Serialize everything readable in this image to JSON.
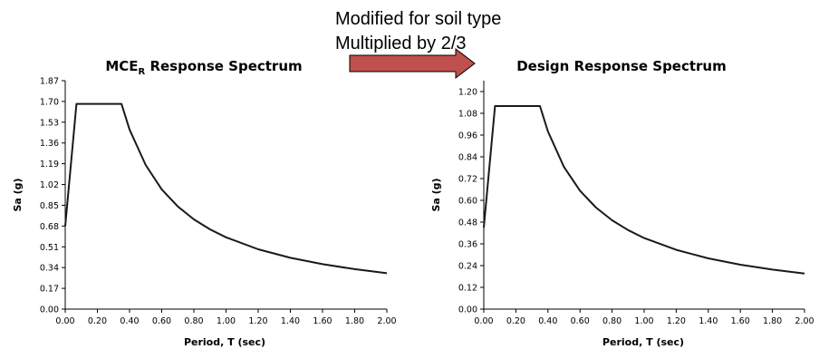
{
  "annotation": {
    "lines": [
      "Modified for soil type",
      "Multiplied by 2/3"
    ],
    "arrow_color": "#c0504d"
  },
  "chart_data": [
    {
      "type": "line",
      "title_main": "MCE",
      "title_sub": "R",
      "title_rest": " Response Spectrum",
      "xlabel": "Period, T (sec)",
      "ylabel": "Sa (g)",
      "xlim": [
        0,
        2.0
      ],
      "ylim": [
        0,
        1.87
      ],
      "xticks": [
        "0.00",
        "0.20",
        "0.40",
        "0.60",
        "0.80",
        "1.00",
        "1.20",
        "1.40",
        "1.60",
        "1.80",
        "2.00"
      ],
      "yticks": [
        "0.00",
        "0.17",
        "0.34",
        "0.51",
        "0.68",
        "0.85",
        "1.02",
        "1.19",
        "1.36",
        "1.53",
        "1.70",
        "1.87"
      ],
      "series": [
        {
          "x": [
            0.0,
            0.07,
            0.35,
            0.4,
            0.5,
            0.6,
            0.7,
            0.8,
            0.9,
            1.0,
            1.2,
            1.4,
            1.6,
            1.8,
            2.0
          ],
          "y": [
            0.68,
            1.68,
            1.68,
            1.47,
            1.18,
            0.98,
            0.84,
            0.735,
            0.653,
            0.588,
            0.49,
            0.42,
            0.368,
            0.327,
            0.294
          ]
        }
      ]
    },
    {
      "type": "line",
      "title_main": "Design Response Spectrum",
      "title_sub": "",
      "title_rest": "",
      "xlabel": "Period, T (sec)",
      "ylabel": "Sa (g)",
      "xlim": [
        0,
        2.0
      ],
      "ylim": [
        0,
        1.26
      ],
      "xticks": [
        "0.00",
        "0.20",
        "0.40",
        "0.60",
        "0.80",
        "1.00",
        "1.20",
        "1.40",
        "1.60",
        "1.80",
        "2.00"
      ],
      "yticks": [
        "0.00",
        "0.12",
        "0.24",
        "0.36",
        "0.48",
        "0.60",
        "0.72",
        "0.84",
        "0.96",
        "1.08",
        "1.20"
      ],
      "series": [
        {
          "x": [
            0.0,
            0.07,
            0.35,
            0.4,
            0.5,
            0.6,
            0.7,
            0.8,
            0.9,
            1.0,
            1.2,
            1.4,
            1.6,
            1.8,
            2.0
          ],
          "y": [
            0.45,
            1.12,
            1.12,
            0.98,
            0.784,
            0.653,
            0.56,
            0.49,
            0.436,
            0.392,
            0.327,
            0.28,
            0.245,
            0.218,
            0.196
          ]
        }
      ]
    }
  ]
}
